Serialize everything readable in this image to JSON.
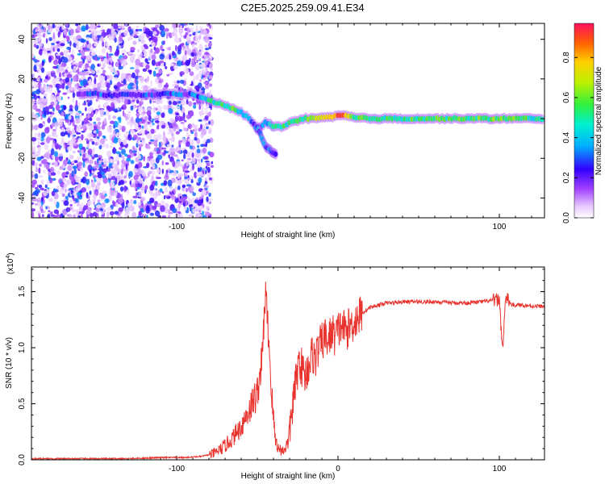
{
  "chart_data": [
    {
      "type": "heatmap",
      "title": "C2E5.2025.259.09.41.E34",
      "xlabel": "Height of straight line (km)",
      "ylabel": "Frequency (Hz)",
      "xlim": [
        -190,
        128
      ],
      "ylim": [
        -50,
        48
      ],
      "x_ticks": [
        -100,
        0,
        100
      ],
      "x_tick_labels": [
        "-100",
        "",
        "100"
      ],
      "y_ticks": [
        -40,
        -20,
        0,
        20,
        40
      ],
      "y_tick_labels": [
        "-40",
        "-20",
        "0",
        "20",
        "40"
      ],
      "colorbar": {
        "label": "Normalized spectral amplitude",
        "range": [
          0.0,
          0.97
        ],
        "ticks": [
          0.0,
          0.2,
          0.4,
          0.6,
          0.8
        ],
        "tick_labels": [
          "0.0",
          "0.2",
          "0.4",
          "0.6",
          "0.8"
        ]
      },
      "track": {
        "x": [
          -160,
          -150,
          -140,
          -130,
          -120,
          -110,
          -100,
          -95,
          -90,
          -85,
          -80,
          -75,
          -70,
          -65,
          -60,
          -55,
          -52,
          -50,
          -48,
          -45,
          -42,
          -40,
          -35,
          -30,
          -25,
          -20,
          -15,
          -10,
          -5,
          0,
          5,
          10,
          20,
          40,
          60,
          80,
          100,
          128
        ],
        "y": [
          12.5,
          12.5,
          11.5,
          12.5,
          11.5,
          12.5,
          12.5,
          12,
          12.5,
          11,
          9,
          8,
          6.5,
          5,
          3,
          0,
          -3,
          -6,
          -4,
          -2,
          -3,
          -4,
          -4,
          -2,
          -1,
          0,
          0,
          0.5,
          0.5,
          1.5,
          1.5,
          0.5,
          0,
          0,
          0,
          0,
          0,
          0
        ],
        "amplitude": [
          0.15,
          0.3,
          0.25,
          0.3,
          0.28,
          0.22,
          0.3,
          0.25,
          0.3,
          0.35,
          0.45,
          0.5,
          0.55,
          0.6,
          0.45,
          0.3,
          0.25,
          0.3,
          0.35,
          0.4,
          0.45,
          0.5,
          0.5,
          0.55,
          0.55,
          0.6,
          0.7,
          0.75,
          0.85,
          0.95,
          0.8,
          0.6,
          0.55,
          0.55,
          0.55,
          0.55,
          0.6,
          0.5
        ]
      },
      "branch": {
        "x": [
          -50,
          -48,
          -46,
          -44,
          -42,
          -40,
          -38
        ],
        "y": [
          -4,
          -8,
          -12,
          -15,
          -16,
          -17,
          -18
        ],
        "amplitude": [
          0.3,
          0.32,
          0.35,
          0.35,
          0.3,
          0.3,
          0.28
        ]
      }
    },
    {
      "type": "line",
      "xlabel": "Height of straight line (km)",
      "ylabel": "SNR (10 * v/v)",
      "y_multiplier": "(x10",
      "y_multiplier_exp": "4",
      "y_multiplier_close": ")",
      "xlim": [
        -190,
        128
      ],
      "ylim": [
        0,
        1.72
      ],
      "x_ticks": [
        -100,
        0,
        100
      ],
      "x_tick_labels": [
        "-100",
        "0",
        "100"
      ],
      "y_ticks": [
        0.0,
        0.5,
        1.0,
        1.5
      ],
      "y_tick_labels": [
        "0.0",
        "0.5",
        "1.0",
        "1.5"
      ],
      "series": [
        {
          "name": "SNR",
          "color": "#e8332e",
          "x": [
            -190,
            -170,
            -150,
            -130,
            -110,
            -95,
            -85,
            -78,
            -72,
            -66,
            -60,
            -55,
            -50,
            -47,
            -45,
            -43,
            -41,
            -39,
            -37,
            -34,
            -31,
            -28,
            -26,
            -24,
            -22,
            -20,
            -18,
            -16,
            -14,
            -12,
            -10,
            -8,
            -6,
            -4,
            -2,
            0,
            2,
            5,
            8,
            11,
            14,
            17,
            20,
            25,
            30,
            35,
            40,
            50,
            60,
            70,
            80,
            90,
            95,
            100,
            102,
            104,
            108,
            115,
            122,
            128
          ],
          "y": [
            0.01,
            0.01,
            0.01,
            0.01,
            0.02,
            0.02,
            0.03,
            0.05,
            0.1,
            0.18,
            0.3,
            0.45,
            0.6,
            0.9,
            1.5,
            1.1,
            0.55,
            0.2,
            0.1,
            0.08,
            0.15,
            0.5,
            0.7,
            0.9,
            0.8,
            0.75,
            0.85,
            0.95,
            0.9,
            1.0,
            1.05,
            1.1,
            1.05,
            1.15,
            1.1,
            1.15,
            1.2,
            1.15,
            1.2,
            1.25,
            1.3,
            1.33,
            1.36,
            1.38,
            1.4,
            1.4,
            1.41,
            1.41,
            1.41,
            1.4,
            1.4,
            1.41,
            1.42,
            1.43,
            0.98,
            1.45,
            1.38,
            1.38,
            1.37,
            1.37
          ]
        }
      ]
    }
  ]
}
